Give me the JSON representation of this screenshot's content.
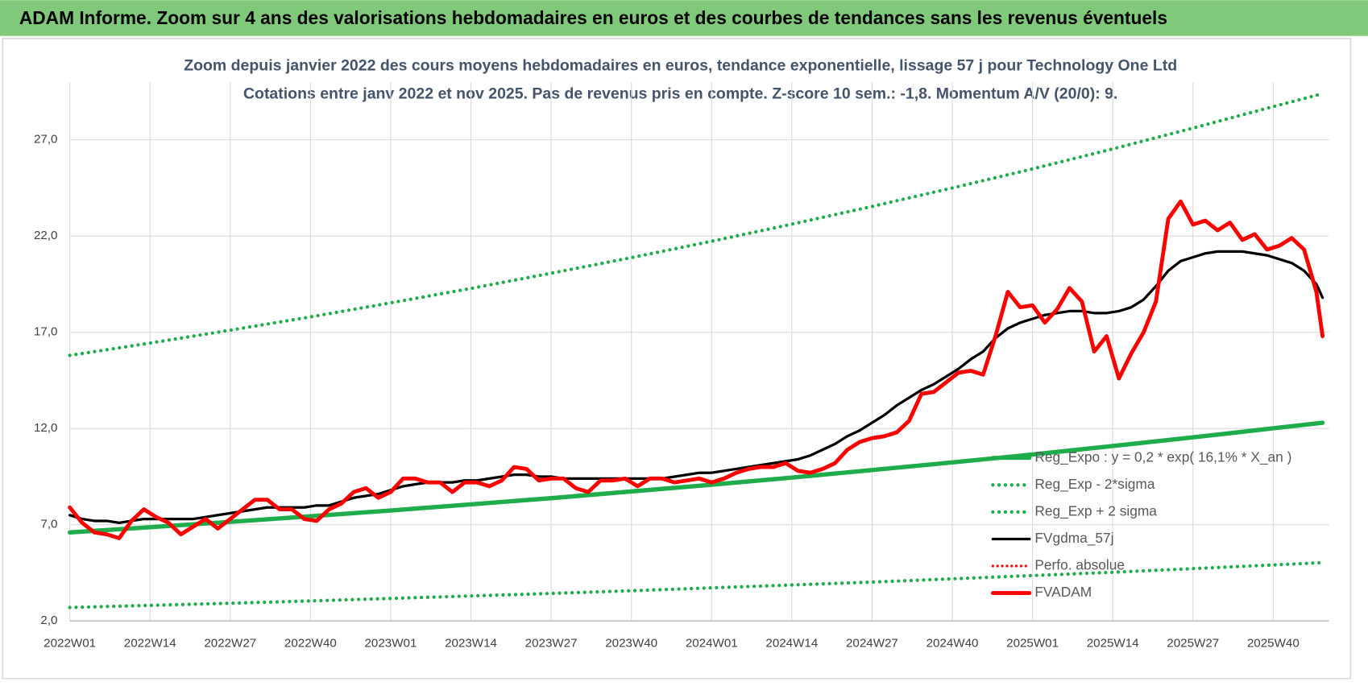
{
  "header": {
    "title": "ADAM Informe. Zoom sur 4 ans des valorisations hebdomadaires en euros et des courbes de tendances sans les revenus éventuels"
  },
  "chart_data": {
    "type": "line",
    "title": "Zoom depuis janvier 2022 des cours moyens hebdomadaires en euros, tendance exponentielle, lissage 57 j pour Technology One Ltd",
    "subtitle": "Cotations entre janv 2022 et nov 2025. Pas de revenus pris en compte. Z-score 10 sem.: -1,8. Momentum A/V (20/0): 9.",
    "xlim": [
      0,
      204
    ],
    "xticks": [
      {
        "value": 0,
        "label": "2022W01"
      },
      {
        "value": 13,
        "label": "2022W14"
      },
      {
        "value": 26,
        "label": "2022W27"
      },
      {
        "value": 39,
        "label": "2022W40"
      },
      {
        "value": 52,
        "label": "2023W01"
      },
      {
        "value": 65,
        "label": "2023W14"
      },
      {
        "value": 78,
        "label": "2023W27"
      },
      {
        "value": 91,
        "label": "2023W40"
      },
      {
        "value": 104,
        "label": "2024W01"
      },
      {
        "value": 117,
        "label": "2024W14"
      },
      {
        "value": 130,
        "label": "2024W27"
      },
      {
        "value": 143,
        "label": "2024W40"
      },
      {
        "value": 156,
        "label": "2025W01"
      },
      {
        "value": 169,
        "label": "2025W14"
      },
      {
        "value": 182,
        "label": "2025W27"
      },
      {
        "value": 195,
        "label": "2025W40"
      }
    ],
    "ylim": [
      2,
      30
    ],
    "yticks": [
      {
        "value": 2,
        "label": "2,0"
      },
      {
        "value": 7,
        "label": "7,0"
      },
      {
        "value": 12,
        "label": "12,0"
      },
      {
        "value": 17,
        "label": "17,0"
      },
      {
        "value": 22,
        "label": "22,0"
      },
      {
        "value": 27,
        "label": "27,0"
      }
    ],
    "grid": true,
    "legend": "bottom-right",
    "x": [
      0,
      2,
      4,
      6,
      8,
      10,
      12,
      14,
      16,
      18,
      20,
      22,
      24,
      26,
      28,
      30,
      32,
      34,
      36,
      38,
      40,
      42,
      44,
      46,
      48,
      50,
      52,
      54,
      56,
      58,
      60,
      62,
      64,
      66,
      68,
      70,
      72,
      74,
      76,
      78,
      80,
      82,
      84,
      86,
      88,
      90,
      92,
      94,
      96,
      98,
      100,
      102,
      104,
      106,
      108,
      110,
      112,
      114,
      116,
      118,
      120,
      122,
      124,
      126,
      128,
      130,
      132,
      134,
      136,
      138,
      140,
      142,
      144,
      146,
      148,
      150,
      152,
      154,
      156,
      158,
      160,
      162,
      164,
      166,
      168,
      170,
      172,
      174,
      176,
      178,
      180,
      182,
      184,
      186,
      188,
      190,
      192,
      194,
      196,
      198,
      200,
      202,
      203
    ],
    "series": [
      {
        "name": "Reg_Expo : y = 0,2 * exp( 16,1% *  X_an )",
        "color": "#1fad4b",
        "style": "solid",
        "width": 5,
        "x": [
          0,
          13,
          26,
          39,
          52,
          65,
          78,
          91,
          104,
          117,
          130,
          143,
          156,
          169,
          182,
          195,
          203
        ],
        "values": [
          6.6,
          6.87,
          7.15,
          7.44,
          7.74,
          8.06,
          8.38,
          8.73,
          9.08,
          9.45,
          9.84,
          10.24,
          10.65,
          11.09,
          11.54,
          12.01,
          12.3
        ]
      },
      {
        "name": "Reg_Exp - 2*sigma",
        "color": "#1fad4b",
        "style": "dotted",
        "width": 4,
        "x": [
          0,
          13,
          26,
          39,
          52,
          65,
          78,
          91,
          104,
          117,
          130,
          143,
          156,
          169,
          182,
          195,
          203
        ],
        "values": [
          2.7,
          2.81,
          2.92,
          3.04,
          3.17,
          3.3,
          3.43,
          3.57,
          3.72,
          3.87,
          4.02,
          4.19,
          4.36,
          4.53,
          4.72,
          4.91,
          5.03
        ]
      },
      {
        "name": "Reg_Exp + 2 sigma",
        "color": "#1fad4b",
        "style": "dotted",
        "width": 4,
        "x": [
          0,
          13,
          26,
          39,
          52,
          65,
          78,
          91,
          104,
          117,
          130,
          143,
          156,
          169,
          182,
          195,
          203
        ],
        "values": [
          15.8,
          16.44,
          17.11,
          17.8,
          18.53,
          19.28,
          20.07,
          20.88,
          21.73,
          22.62,
          23.54,
          24.5,
          25.49,
          26.53,
          27.61,
          28.73,
          29.4
        ]
      },
      {
        "name": "FVgdma_57j",
        "color": "#000000",
        "style": "solid",
        "width": 3,
        "values": [
          7.5,
          7.3,
          7.2,
          7.2,
          7.1,
          7.2,
          7.3,
          7.3,
          7.3,
          7.3,
          7.3,
          7.4,
          7.5,
          7.6,
          7.7,
          7.8,
          7.9,
          7.9,
          7.9,
          7.9,
          8.0,
          8.0,
          8.2,
          8.4,
          8.5,
          8.6,
          8.8,
          9.0,
          9.1,
          9.2,
          9.2,
          9.2,
          9.3,
          9.3,
          9.4,
          9.5,
          9.6,
          9.6,
          9.5,
          9.5,
          9.4,
          9.4,
          9.4,
          9.4,
          9.4,
          9.4,
          9.4,
          9.4,
          9.4,
          9.5,
          9.6,
          9.7,
          9.7,
          9.8,
          9.9,
          10.0,
          10.1,
          10.2,
          10.3,
          10.4,
          10.6,
          10.9,
          11.2,
          11.6,
          11.9,
          12.3,
          12.7,
          13.2,
          13.6,
          14.0,
          14.3,
          14.7,
          15.1,
          15.6,
          16.0,
          16.7,
          17.2,
          17.5,
          17.7,
          17.9,
          18.0,
          18.1,
          18.1,
          18.0,
          18.0,
          18.1,
          18.3,
          18.7,
          19.4,
          20.2,
          20.7,
          20.9,
          21.1,
          21.2,
          21.2,
          21.2,
          21.1,
          21.0,
          20.8,
          20.6,
          20.2,
          19.5,
          18.8
        ]
      },
      {
        "name": "Perfo. absolue",
        "color": "#ff0000",
        "style": "dotted",
        "width": 3,
        "x": [],
        "values": []
      },
      {
        "name": "FVADAM",
        "color": "#ff0000",
        "style": "solid",
        "width": 4.5,
        "values": [
          7.9,
          7.1,
          6.6,
          6.5,
          6.3,
          7.2,
          7.8,
          7.4,
          7.1,
          6.5,
          6.9,
          7.3,
          6.8,
          7.3,
          7.8,
          8.3,
          8.3,
          7.8,
          7.8,
          7.3,
          7.2,
          7.8,
          8.1,
          8.7,
          8.9,
          8.4,
          8.7,
          9.4,
          9.4,
          9.2,
          9.2,
          8.7,
          9.2,
          9.2,
          9.0,
          9.3,
          10.0,
          9.9,
          9.3,
          9.4,
          9.4,
          8.9,
          8.7,
          9.3,
          9.3,
          9.4,
          9.0,
          9.4,
          9.4,
          9.2,
          9.3,
          9.4,
          9.2,
          9.4,
          9.7,
          9.9,
          10.0,
          10.0,
          10.2,
          9.8,
          9.7,
          9.9,
          10.2,
          10.9,
          11.3,
          11.5,
          11.6,
          11.8,
          12.4,
          13.8,
          13.9,
          14.4,
          14.9,
          15.0,
          14.8,
          16.8,
          19.1,
          18.3,
          18.4,
          17.5,
          18.2,
          19.3,
          18.6,
          16.0,
          16.8,
          14.6,
          15.9,
          17.0,
          18.6,
          22.9,
          23.8,
          22.6,
          22.8,
          22.3,
          22.7,
          21.8,
          22.1,
          21.3,
          21.5,
          21.9,
          21.3,
          19.1,
          16.8
        ]
      }
    ]
  }
}
